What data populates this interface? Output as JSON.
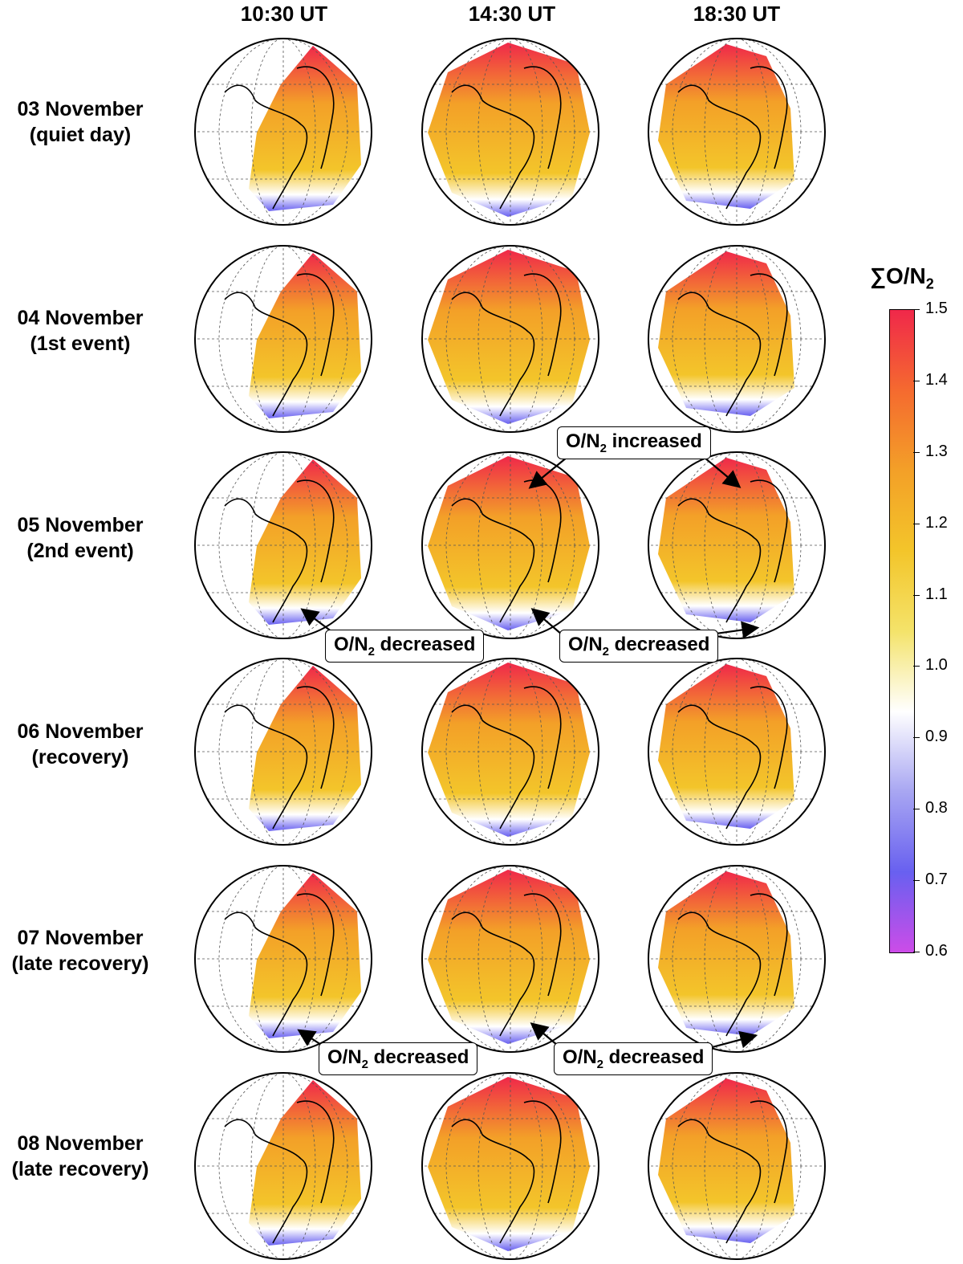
{
  "columns": [
    "10:30 UT",
    "14:30 UT",
    "18:30 UT"
  ],
  "rows": [
    {
      "date": "03 November",
      "note": "(quiet day)"
    },
    {
      "date": "04 November",
      "note": "(1st event)"
    },
    {
      "date": "05 November",
      "note": "(2nd event)"
    },
    {
      "date": "06 November",
      "note": "(recovery)"
    },
    {
      "date": "07 November",
      "note": "(late recovery)"
    },
    {
      "date": "08 November",
      "note": "(late recovery)"
    }
  ],
  "callouts": {
    "increased": {
      "base": "O/N",
      "sub": "2",
      "suffix": " increased"
    },
    "decreased": {
      "base": "O/N",
      "sub": "2",
      "suffix": " decreased"
    }
  },
  "colorbar": {
    "title_prefix": "∑O/N",
    "title_sub": "2",
    "ticks": [
      "1.5",
      "1.4",
      "1.3",
      "1.2",
      "1.1",
      "1.0",
      "0.9",
      "0.8",
      "0.7",
      "0.6"
    ],
    "range": [
      0.6,
      1.5
    ],
    "colors": [
      "#cc4ce8",
      "#6860f0",
      "#a8a6f2",
      "#ffffff",
      "#f4e36a",
      "#f3c52a",
      "#f3a028",
      "#f56a2f",
      "#f0284a"
    ]
  }
}
